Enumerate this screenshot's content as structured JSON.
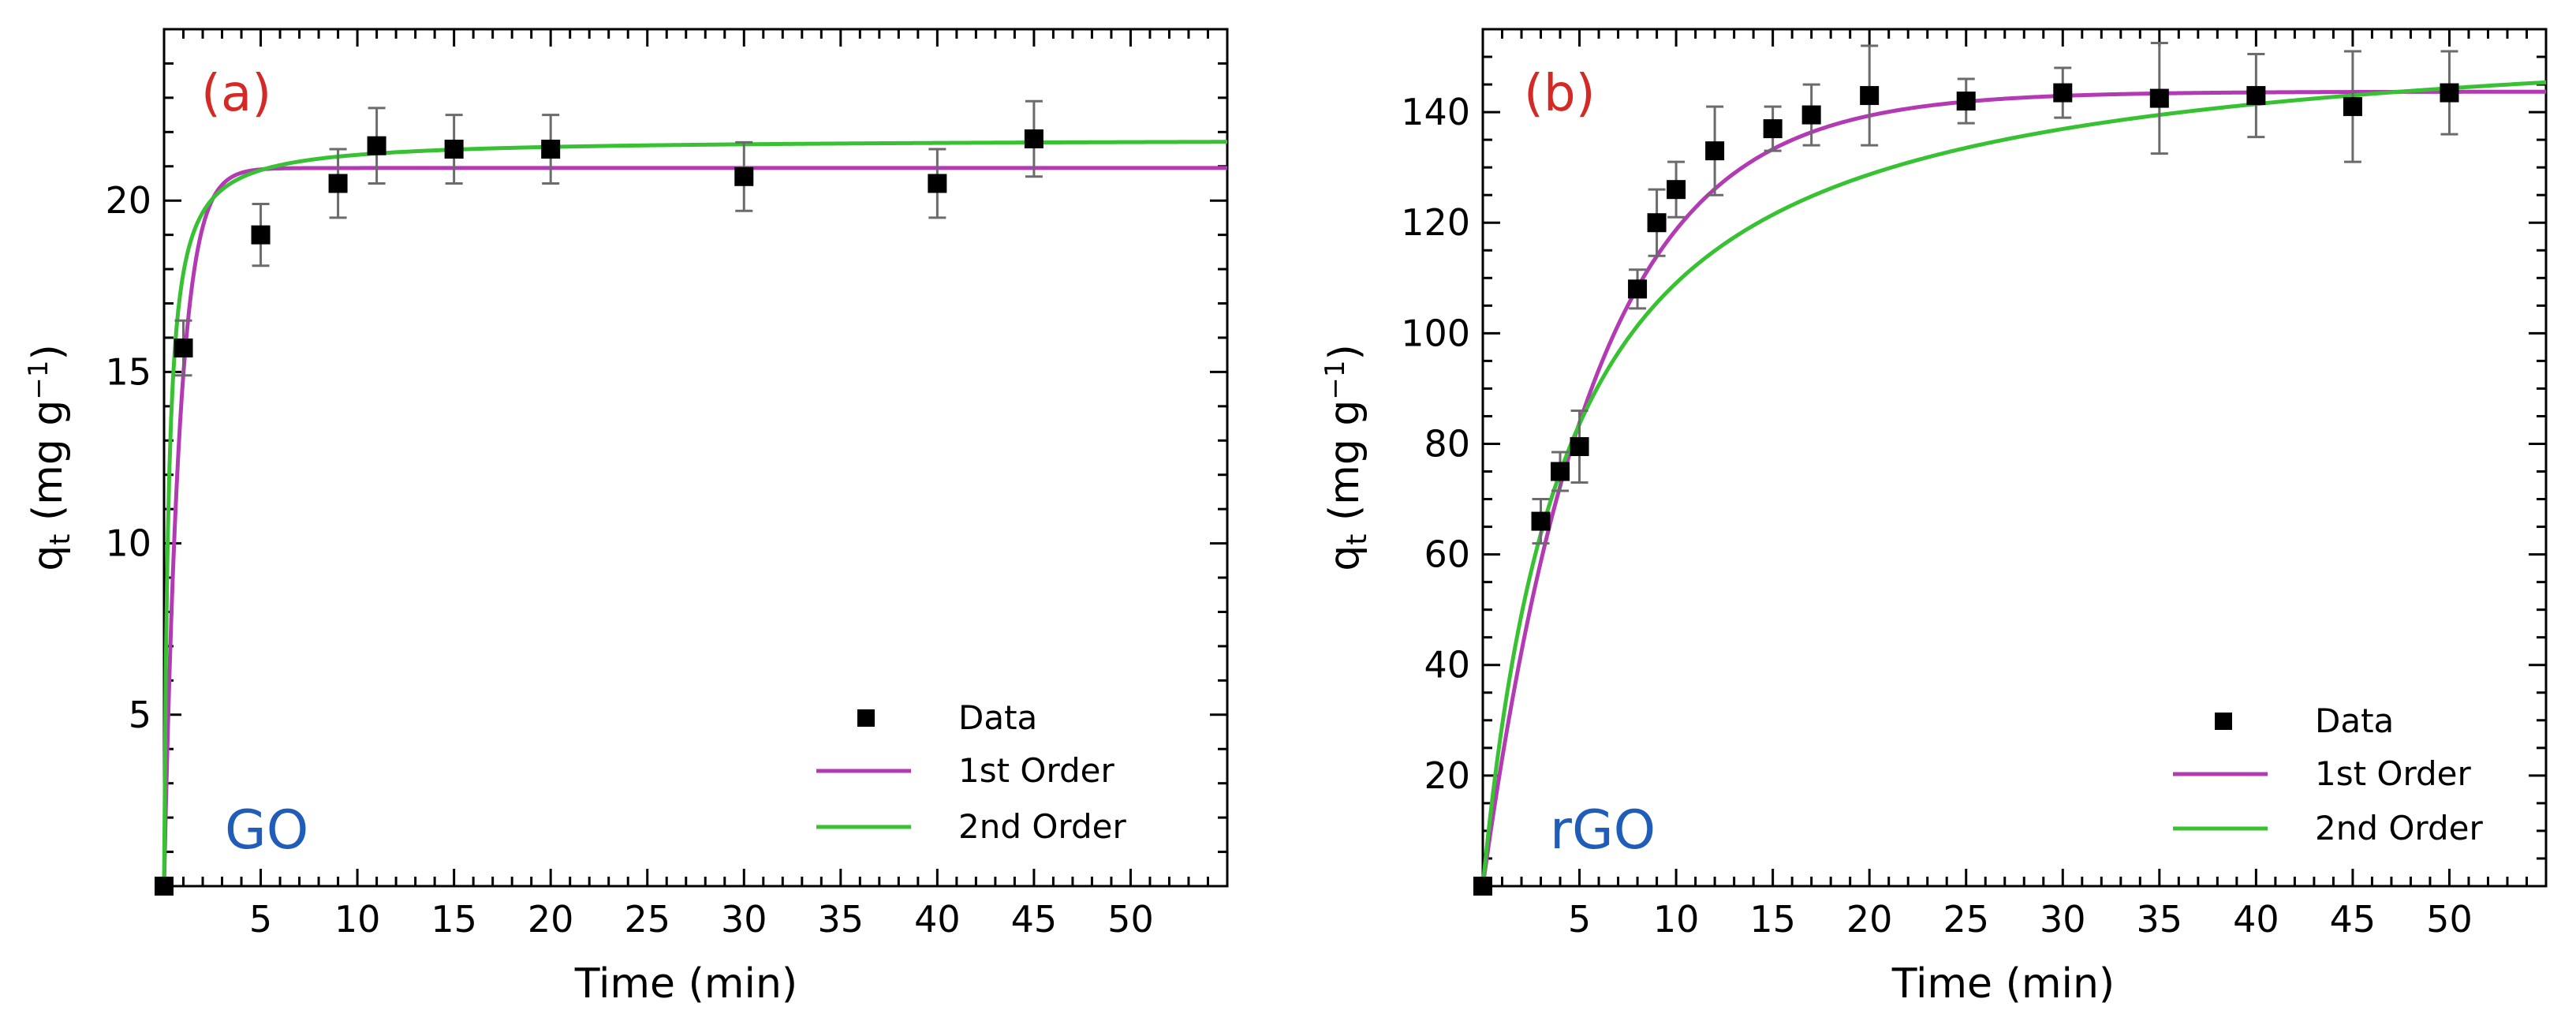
{
  "chart_data": [
    {
      "type": "scatter",
      "panel_label": "(a)",
      "sample_label": "GO",
      "xlabel": "Time (min)",
      "ylabel": "q",
      "ylabel_sub": "t",
      "ylabel_units": " (mg g",
      "ylabel_sup": "−1",
      "ylabel_close": ")",
      "xlim": [
        0,
        55
      ],
      "ylim": [
        0,
        25
      ],
      "xticks": [
        5,
        10,
        15,
        20,
        25,
        30,
        35,
        40,
        45,
        50
      ],
      "yticks": [
        5,
        10,
        15,
        20
      ],
      "x_minor_step": 1,
      "y_minor_step": 1,
      "legend_position": "bottom-right",
      "series": [
        {
          "name": "Data",
          "kind": "points",
          "color": "#000000",
          "x": [
            0,
            1,
            5,
            9,
            11,
            15,
            20,
            30,
            40,
            45
          ],
          "y": [
            0,
            15.7,
            19.0,
            20.5,
            21.6,
            21.5,
            21.5,
            20.7,
            20.5,
            21.8
          ],
          "err": [
            0,
            0.8,
            0.9,
            1.0,
            1.1,
            1.0,
            1.0,
            1.0,
            1.0,
            1.1
          ]
        },
        {
          "name": "1st Order",
          "kind": "line",
          "color": "#b23ab2",
          "model": "pfo",
          "qe": 20.95,
          "k": 1.25
        },
        {
          "name": "2nd Order",
          "kind": "line",
          "color": "#39c134",
          "model": "pso",
          "qe": 21.8,
          "k": 0.21
        }
      ]
    },
    {
      "type": "scatter",
      "panel_label": "(b)",
      "sample_label": "rGO",
      "xlabel": "Time (min)",
      "ylabel": "q",
      "ylabel_sub": "t",
      "ylabel_units": " (mg g",
      "ylabel_sup": "−1",
      "ylabel_close": ")",
      "xlim": [
        0,
        55
      ],
      "ylim": [
        0,
        155
      ],
      "xticks": [
        5,
        10,
        15,
        20,
        25,
        30,
        35,
        40,
        45,
        50
      ],
      "yticks": [
        20,
        40,
        60,
        80,
        100,
        120,
        140
      ],
      "x_minor_step": 1,
      "y_minor_step": 5,
      "legend_position": "bottom-right",
      "series": [
        {
          "name": "Data",
          "kind": "points",
          "color": "#000000",
          "x": [
            0,
            3,
            4,
            5,
            8,
            9,
            10,
            12,
            15,
            17,
            20,
            25,
            30,
            35,
            40,
            45,
            50
          ],
          "y": [
            0,
            66,
            75,
            79.5,
            108,
            120,
            126,
            133,
            137,
            139.5,
            143,
            142,
            143.5,
            142.5,
            143,
            141,
            143.5
          ],
          "err": [
            0,
            4,
            3.5,
            6.5,
            3.5,
            6,
            5,
            8,
            4,
            5.5,
            9,
            4,
            4.5,
            10,
            7.5,
            10,
            7.5
          ]
        },
        {
          "name": "1st Order",
          "kind": "line",
          "color": "#b23ab2",
          "model": "pfo",
          "qe": 143.7,
          "k": 0.175
        },
        {
          "name": "2nd Order",
          "kind": "line",
          "color": "#39c134",
          "model": "pso",
          "qe": 157.0,
          "k": 0.00145
        }
      ]
    }
  ],
  "colors": {
    "panel_label": "#d42a26",
    "sample_label": "#1f5db8",
    "error_bar": "#6b6b6b"
  }
}
